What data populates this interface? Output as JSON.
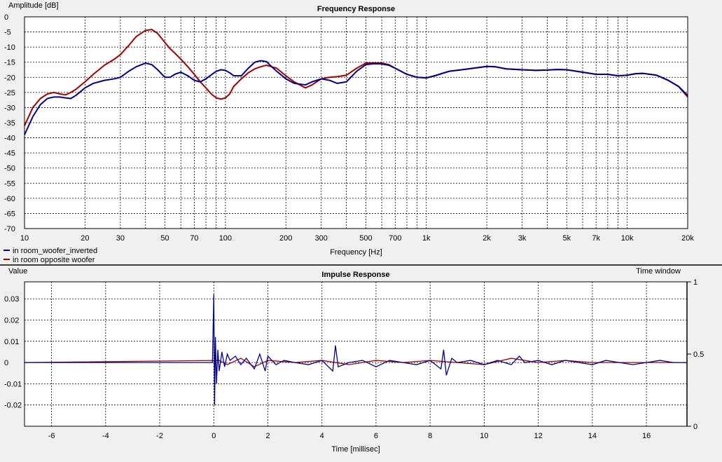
{
  "chart_data": [
    {
      "type": "line",
      "title": "Frequency Response",
      "ylabel": "Amplitude [dB]",
      "xlabel": "Frequency [Hz]",
      "xscale": "log",
      "xlim": [
        10,
        20000
      ],
      "ylim": [
        -70,
        0
      ],
      "xticks": [
        10,
        20,
        30,
        50,
        70,
        100,
        200,
        300,
        500,
        700,
        1000,
        2000,
        3000,
        5000,
        7000,
        10000,
        20000
      ],
      "xtick_labels": [
        "10",
        "20",
        "30",
        "50",
        "70",
        "100",
        "200",
        "300",
        "500",
        "700",
        "1k",
        "2k",
        "3k",
        "5k",
        "7k",
        "10k",
        "20k"
      ],
      "yticks": [
        0,
        -5,
        -10,
        -15,
        -20,
        -25,
        -30,
        -35,
        -40,
        -45,
        -50,
        -55,
        -60,
        -65,
        -70
      ],
      "ytick_labels": [
        "0",
        "-5",
        "-10",
        "-15",
        "-20",
        "-25",
        "-30",
        "-35",
        "-40",
        "-45",
        "-50",
        "-55",
        "-60",
        "-65",
        "-70"
      ],
      "grid": true,
      "legend": "bottom-left",
      "series": [
        {
          "name": "in room_woofer_inverted",
          "color": "#00008b",
          "x": [
            10,
            11,
            12,
            13,
            14,
            15,
            16,
            17,
            18,
            20,
            22,
            25,
            28,
            30,
            33,
            36,
            40,
            43,
            46,
            50,
            53,
            56,
            60,
            65,
            70,
            75,
            80,
            85,
            90,
            95,
            100,
            105,
            110,
            120,
            130,
            140,
            150,
            160,
            170,
            180,
            200,
            220,
            250,
            270,
            300,
            330,
            360,
            400,
            450,
            500,
            550,
            600,
            650,
            700,
            800,
            900,
            1000,
            1100,
            1300,
            1500,
            1800,
            2000,
            2200,
            2500,
            3000,
            3500,
            4000,
            4500,
            5000,
            6000,
            7000,
            8000,
            9000,
            10000,
            11000,
            12000,
            14000,
            16000,
            18000,
            20000
          ],
          "y": [
            -39,
            -33,
            -29,
            -27,
            -26.5,
            -26.5,
            -26.8,
            -27,
            -26,
            -23.5,
            -22,
            -21,
            -20.5,
            -20,
            -18,
            -16.5,
            -15.3,
            -15.8,
            -17.5,
            -20,
            -20,
            -19,
            -18.3,
            -19.5,
            -21,
            -21.5,
            -20.5,
            -19.2,
            -18,
            -17.5,
            -17.7,
            -18.5,
            -19.5,
            -19.5,
            -17,
            -15,
            -14.5,
            -14.8,
            -16.5,
            -18,
            -20.5,
            -22,
            -22.5,
            -21.5,
            -20.5,
            -21,
            -22,
            -21.5,
            -18,
            -15.8,
            -15.5,
            -15.6,
            -16,
            -17,
            -19,
            -20,
            -20.2,
            -19.5,
            -18,
            -17.5,
            -16.8,
            -16.4,
            -16.5,
            -17.2,
            -17.5,
            -17.7,
            -17.6,
            -17.4,
            -17.5,
            -18.3,
            -19,
            -19,
            -19.5,
            -19.3,
            -18.8,
            -18.7,
            -19.3,
            -21,
            -23,
            -26
          ]
        },
        {
          "name": "in room opposite woofer",
          "color": "#a00000",
          "x": [
            10,
            11,
            12,
            13,
            14,
            15,
            16,
            17,
            18,
            20,
            22,
            25,
            28,
            30,
            33,
            36,
            40,
            43,
            46,
            50,
            53,
            56,
            60,
            65,
            70,
            75,
            80,
            85,
            90,
            95,
            100,
            105,
            110,
            120,
            130,
            140,
            150,
            160,
            170,
            180,
            200,
            220,
            250,
            270,
            300,
            330,
            360,
            400,
            450,
            500,
            550,
            600,
            650,
            700,
            800,
            900,
            1000,
            1100,
            1300,
            1500,
            1800,
            2000,
            2200,
            2500,
            3000,
            3500,
            4000,
            4500,
            5000,
            6000,
            7000,
            8000,
            9000,
            10000,
            11000,
            12000,
            14000,
            16000,
            18000,
            20000
          ],
          "y": [
            -36,
            -30,
            -27,
            -25.5,
            -25,
            -25.5,
            -25.8,
            -25,
            -24,
            -21.5,
            -19,
            -16,
            -14,
            -12.5,
            -9.5,
            -6.5,
            -4.5,
            -4.2,
            -5.5,
            -8.5,
            -10.5,
            -12,
            -14,
            -16.5,
            -19,
            -21.5,
            -23.5,
            -25.5,
            -26.8,
            -27.2,
            -26.8,
            -25.5,
            -23,
            -20.5,
            -18.5,
            -17.2,
            -16.5,
            -16,
            -16.5,
            -17,
            -19.5,
            -21.5,
            -23.5,
            -22.5,
            -20.5,
            -20,
            -19.8,
            -19.3,
            -17,
            -15.3,
            -15.2,
            -15.3,
            -15.8,
            -17,
            -19,
            -20,
            -20.2,
            -19.5,
            -18,
            -17.5,
            -16.8,
            -16.4,
            -16.5,
            -17.2,
            -17.5,
            -17.7,
            -17.6,
            -17.4,
            -17.5,
            -18.3,
            -19,
            -19,
            -19.5,
            -19.3,
            -18.8,
            -18.7,
            -19.3,
            -21,
            -23,
            -26.5
          ]
        }
      ]
    },
    {
      "type": "line",
      "title": "Impulse Response",
      "ylabel": "Value",
      "xlabel": "Time [millisec]",
      "xlim": [
        -7,
        17.5
      ],
      "ylim": [
        -0.03,
        0.038
      ],
      "xticks": [
        -6,
        -4,
        -2,
        0,
        2,
        4,
        6,
        8,
        10,
        12,
        14,
        16
      ],
      "xtick_labels": [
        "-6",
        "-4",
        "-2",
        "0",
        "2",
        "4",
        "6",
        "8",
        "10",
        "12",
        "14",
        "16"
      ],
      "yticks": [
        0.03,
        0.02,
        0.01,
        0,
        -0.01,
        -0.02
      ],
      "ytick_labels": [
        "0.03",
        "0.02",
        "0.01",
        "0",
        "-0.01",
        "-0.02"
      ],
      "secondary_axis": {
        "label": "Time window",
        "ylim": [
          0,
          1
        ],
        "yticks": [
          1,
          0.5,
          0
        ],
        "ytick_labels": [
          "1",
          "0.5",
          "0"
        ]
      },
      "grid": true,
      "series": [
        {
          "name": "in room_woofer_inverted",
          "color": "#00008b",
          "x": [
            -7,
            -0.05,
            0,
            0.03,
            0.06,
            0.1,
            0.15,
            0.2,
            0.3,
            0.4,
            0.5,
            0.6,
            0.8,
            1.0,
            1.2,
            1.5,
            1.7,
            1.9,
            2.0,
            2.3,
            2.6,
            3.0,
            3.5,
            4.0,
            4.4,
            4.5,
            4.6,
            5.0,
            5.5,
            6.0,
            6.5,
            7.0,
            7.5,
            8.0,
            8.4,
            8.5,
            8.6,
            8.8,
            9.0,
            9.5,
            10.0,
            10.5,
            11.0,
            11.3,
            11.5,
            12.0,
            12.5,
            13.0,
            13.5,
            14.0,
            14.5,
            15.0,
            15.5,
            16.0,
            16.5,
            17.0,
            17.5
          ],
          "y": [
            0,
            0,
            0.032,
            -0.02,
            0.012,
            -0.01,
            0.006,
            -0.004,
            0.005,
            -0.002,
            0.004,
            0.001,
            0.003,
            -0.001,
            0.002,
            -0.003,
            0.004,
            -0.004,
            0.003,
            -0.001,
            0.001,
            0,
            -0.001,
            0.001,
            -0.004,
            0.008,
            -0.002,
            0,
            0.001,
            -0.002,
            0.001,
            0,
            -0.001,
            0.001,
            -0.003,
            0.006,
            -0.006,
            0.002,
            0,
            0.001,
            -0.001,
            0.001,
            -0.001,
            0.003,
            0,
            0.001,
            -0.001,
            0.001,
            0,
            -0.001,
            0.001,
            0,
            -0.001,
            0,
            0.001,
            0,
            0
          ]
        },
        {
          "name": "in room opposite woofer",
          "color": "#a00000",
          "x": [
            -7,
            0.2,
            0.5,
            1.0,
            1.5,
            2.0,
            3.0,
            4.0,
            5.0,
            6.0,
            7.0,
            8.0,
            9.0,
            10.0,
            11.0,
            12.0,
            13.0,
            14.0,
            15.0,
            16.0,
            17.5
          ],
          "y": [
            0,
            0.001,
            -0.001,
            0.002,
            -0.002,
            0.001,
            0,
            0.001,
            -0.001,
            0.001,
            0,
            0.001,
            0,
            -0.001,
            0.002,
            0,
            0.001,
            0,
            0,
            0,
            0
          ]
        }
      ]
    }
  ]
}
